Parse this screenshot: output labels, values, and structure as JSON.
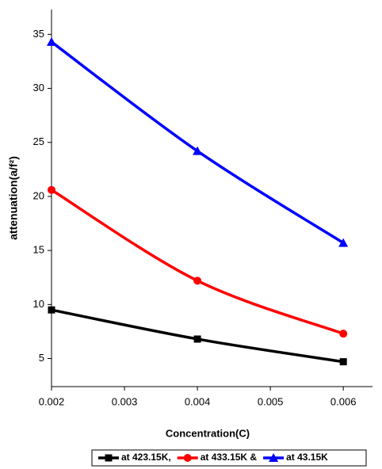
{
  "chart_data": {
    "type": "line",
    "x_label": "Concentration(C)",
    "y_label": "attenuation(a/f²)",
    "x": [
      0.002,
      0.004,
      0.006
    ],
    "series": [
      {
        "name": "at 423.15K,",
        "color": "#000000",
        "marker": "square",
        "values": [
          9.5,
          6.8,
          4.7
        ]
      },
      {
        "name": "at 433.15K &",
        "color": "#ff0000",
        "marker": "circle",
        "values": [
          20.6,
          12.2,
          7.3
        ]
      },
      {
        "name": "at 43.15K",
        "color": "#0000ff",
        "marker": "triangle",
        "values": [
          34.3,
          24.2,
          15.7
        ]
      }
    ],
    "xlim": [
      0.002,
      0.0064
    ],
    "ylim": [
      2.4,
      37.3
    ],
    "xticks": [
      0.002,
      0.003,
      0.004,
      0.005,
      0.006
    ],
    "yticks": [
      5,
      10,
      15,
      20,
      25,
      30,
      35
    ],
    "legend": "bottom"
  }
}
